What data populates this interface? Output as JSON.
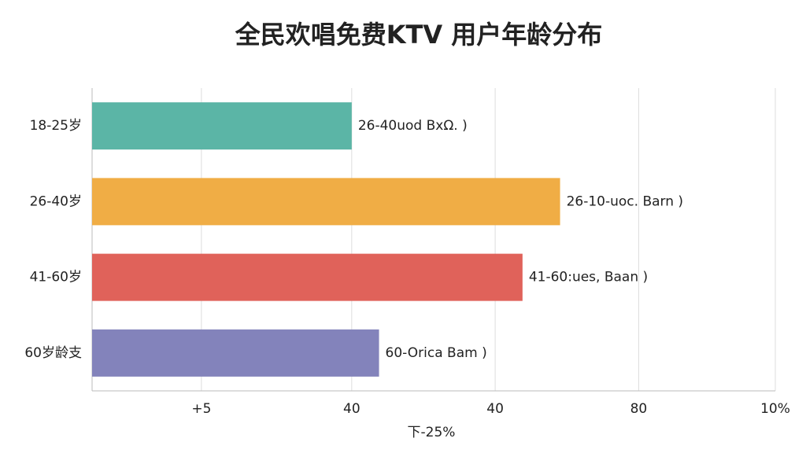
{
  "chart_data": {
    "type": "hbar",
    "title": "全民欢唱免费KTV 用户年龄分布",
    "categories": [
      "18-25岁",
      "26-40岁",
      "41-60岁",
      "60岁龄支"
    ],
    "values": [
      38,
      68.5,
      63,
      42
    ],
    "colors": [
      "#5bb5a6",
      "#f0ad45",
      "#e0625a",
      "#8383bb"
    ],
    "annotations": [
      "26-40uod BxΩ. )",
      "26-10-uoc. Barn )",
      "41-60:ues, Baan )",
      "60-Orica Bam )"
    ],
    "xlabel": "下-25%",
    "xlim": [
      0,
      100
    ],
    "xticks": [
      {
        "value": 16,
        "label": "+5"
      },
      {
        "value": 38,
        "label": "40"
      },
      {
        "value": 59,
        "label": "40"
      },
      {
        "value": 80,
        "label": "80"
      },
      {
        "value": 100,
        "label": "10%"
      }
    ],
    "grid": true
  }
}
